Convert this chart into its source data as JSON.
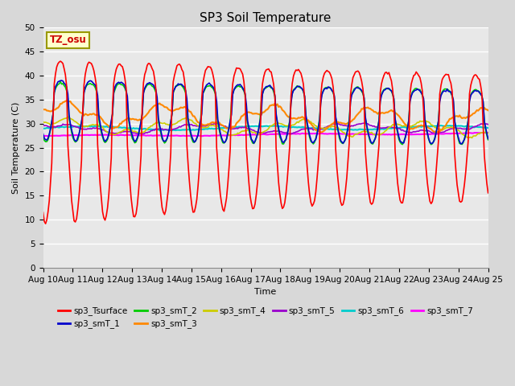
{
  "title": "SP3 Soil Temperature",
  "ylabel": "Soil Temperature (C)",
  "xlabel": "Time",
  "tz_label": "TZ_osu",
  "ylim": [
    0,
    50
  ],
  "yticks": [
    0,
    5,
    10,
    15,
    20,
    25,
    30,
    35,
    40,
    45,
    50
  ],
  "series": {
    "sp3_Tsurface": {
      "color": "#ff0000",
      "linewidth": 1.2
    },
    "sp3_smT_1": {
      "color": "#0000cc",
      "linewidth": 1.2
    },
    "sp3_smT_2": {
      "color": "#00cc00",
      "linewidth": 1.2
    },
    "sp3_smT_3": {
      "color": "#ff8800",
      "linewidth": 1.5
    },
    "sp3_smT_4": {
      "color": "#cccc00",
      "linewidth": 1.2
    },
    "sp3_smT_5": {
      "color": "#9900cc",
      "linewidth": 1.2
    },
    "sp3_smT_6": {
      "color": "#00cccc",
      "linewidth": 1.5
    },
    "sp3_smT_7": {
      "color": "#ff00ff",
      "linewidth": 1.5
    }
  },
  "background_color": "#d8d8d8",
  "plot_background": "#e8e8e8",
  "grid_color": "#ffffff",
  "title_fontsize": 11,
  "axis_fontsize": 8,
  "tick_fontsize": 7.5
}
